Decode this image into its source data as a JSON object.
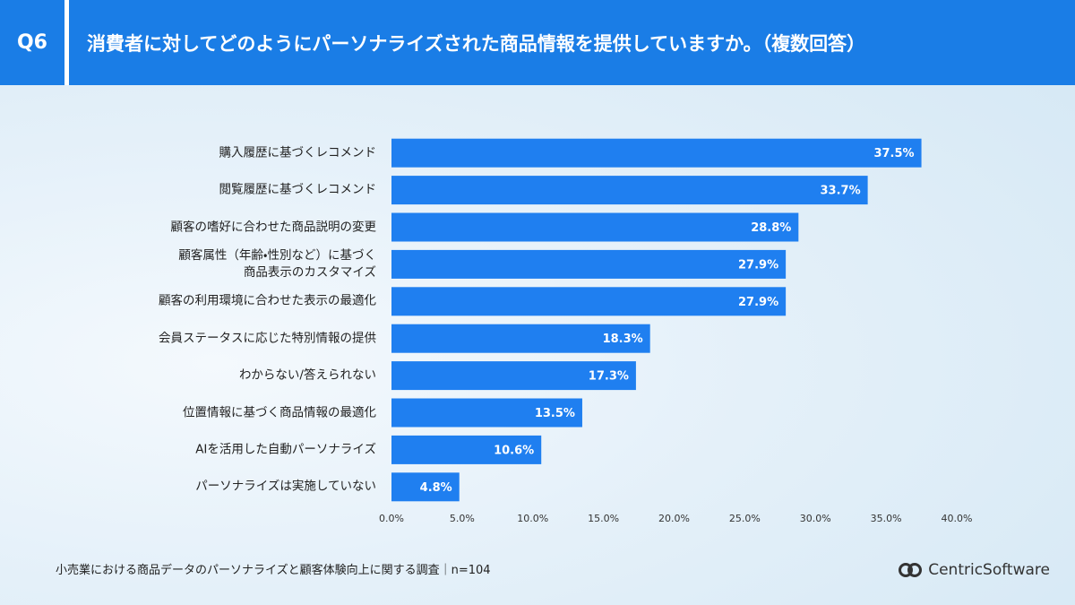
{
  "header": {
    "number": "Q6"
  },
  "chart_data": {
    "type": "hbar",
    "title": "消費者に対してどのようにパーソナライズされた商品情報を提供していますか。（複数回答）",
    "categories": [
      "購入履歴に基づくレコメンド",
      "閲覧履歴に基づくレコメンド",
      "顧客の嗜好に合わせた商品説明の変更",
      "顧客属性（年齢・性別など）に基づく\n商品表示のカスタマイズ",
      "顧客の利用環境に合わせた表示の最適化",
      "会員ステータスに応じた特別情報の提供",
      "わからない/答えられない",
      "位置情報に基づく商品情報の最適化",
      "AIを活用した自動パーソナライズ",
      "パーソナライズは実施していない"
    ],
    "values": [
      37.5,
      33.7,
      28.8,
      27.9,
      27.9,
      18.3,
      17.3,
      13.5,
      10.6,
      4.8
    ],
    "value_labels": [
      "37.5%",
      "33.7%",
      "28.8%",
      "27.9%",
      "27.9%",
      "18.3%",
      "17.3%",
      "13.5%",
      "10.6%",
      "4.8%"
    ],
    "color": "#1f7ff0",
    "xlim": [
      0,
      40
    ],
    "xticks": [
      {
        "value": 0,
        "label": "0.0%"
      },
      {
        "value": 5,
        "label": "5.0%"
      },
      {
        "value": 10,
        "label": "10.0%"
      },
      {
        "value": 15,
        "label": "15.0%"
      },
      {
        "value": 20,
        "label": "20.0%"
      },
      {
        "value": 25,
        "label": "25.0%"
      },
      {
        "value": 30,
        "label": "30.0%"
      },
      {
        "value": 35,
        "label": "35.0%"
      },
      {
        "value": 40,
        "label": "40.0%"
      }
    ],
    "grid": false
  },
  "footer": {
    "source": "小売業における商品データのパーソナライズと顧客体験向上に関する調査｜n=104",
    "logo": "CentricSoftware"
  }
}
